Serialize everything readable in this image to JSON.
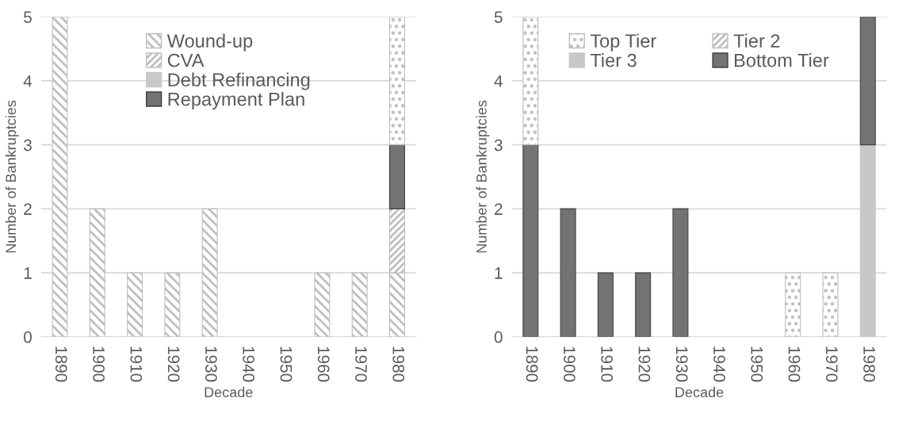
{
  "chart_data": [
    {
      "type": "bar",
      "stacked": true,
      "xlabel": "Decade",
      "ylabel": "Number of Bankruptcies",
      "categories": [
        "1890",
        "1900",
        "1910",
        "1920",
        "1930",
        "1940",
        "1950",
        "1960",
        "1970",
        "1980"
      ],
      "series": [
        {
          "name": "Wound-up",
          "color": "#bfbfbf",
          "values": [
            5,
            2,
            1,
            1,
            2,
            0,
            0,
            1,
            1,
            1
          ]
        },
        {
          "name": "CVA",
          "color": "#bfbfbf",
          "values": [
            0,
            0,
            0,
            0,
            0,
            0,
            0,
            0,
            0,
            1
          ]
        },
        {
          "name": "Debt Refinancing",
          "color": "#c8c8c8",
          "values": [
            0,
            0,
            0,
            0,
            0,
            0,
            0,
            0,
            0,
            0
          ]
        },
        {
          "name": "Repayment Plan",
          "color": "#737373",
          "values": [
            0,
            0,
            0,
            0,
            0,
            0,
            0,
            0,
            0,
            1
          ]
        },
        {
          "color": "#bfbfbf",
          "values": [
            0,
            0,
            0,
            0,
            0,
            0,
            0,
            0,
            0,
            2
          ]
        }
      ],
      "ylim": [
        0,
        5
      ],
      "yticks": [
        0,
        1,
        2,
        3,
        4,
        5
      ],
      "grid": "y",
      "legend": "top"
    },
    {
      "type": "bar",
      "stacked": true,
      "xlabel": "Decade",
      "ylabel": "Number of Bankruptcies",
      "categories": [
        "1890",
        "1900",
        "1910",
        "1920",
        "1930",
        "1940",
        "1950",
        "1960",
        "1970",
        "1980"
      ],
      "series": [
        {
          "name": "Top Tier",
          "color": "#bfbfbf",
          "values": [
            2,
            0,
            0,
            0,
            0,
            0,
            0,
            1,
            1,
            0
          ]
        },
        {
          "name": "Tier 2",
          "color": "#bfbfbf",
          "values": [
            0,
            0,
            0,
            0,
            0,
            0,
            0,
            0,
            0,
            0
          ]
        },
        {
          "name": "Tier 3",
          "color": "#c8c8c8",
          "values": [
            0,
            0,
            0,
            0,
            0,
            0,
            0,
            0,
            0,
            3
          ]
        },
        {
          "name": "Bottom Tier",
          "color": "#737373",
          "values": [
            3,
            2,
            1,
            1,
            2,
            0,
            0,
            0,
            0,
            2
          ]
        }
      ],
      "ylim": [
        0,
        5
      ],
      "yticks": [
        0,
        1,
        2,
        3,
        4,
        5
      ],
      "grid": "y",
      "legend": "top"
    }
  ]
}
